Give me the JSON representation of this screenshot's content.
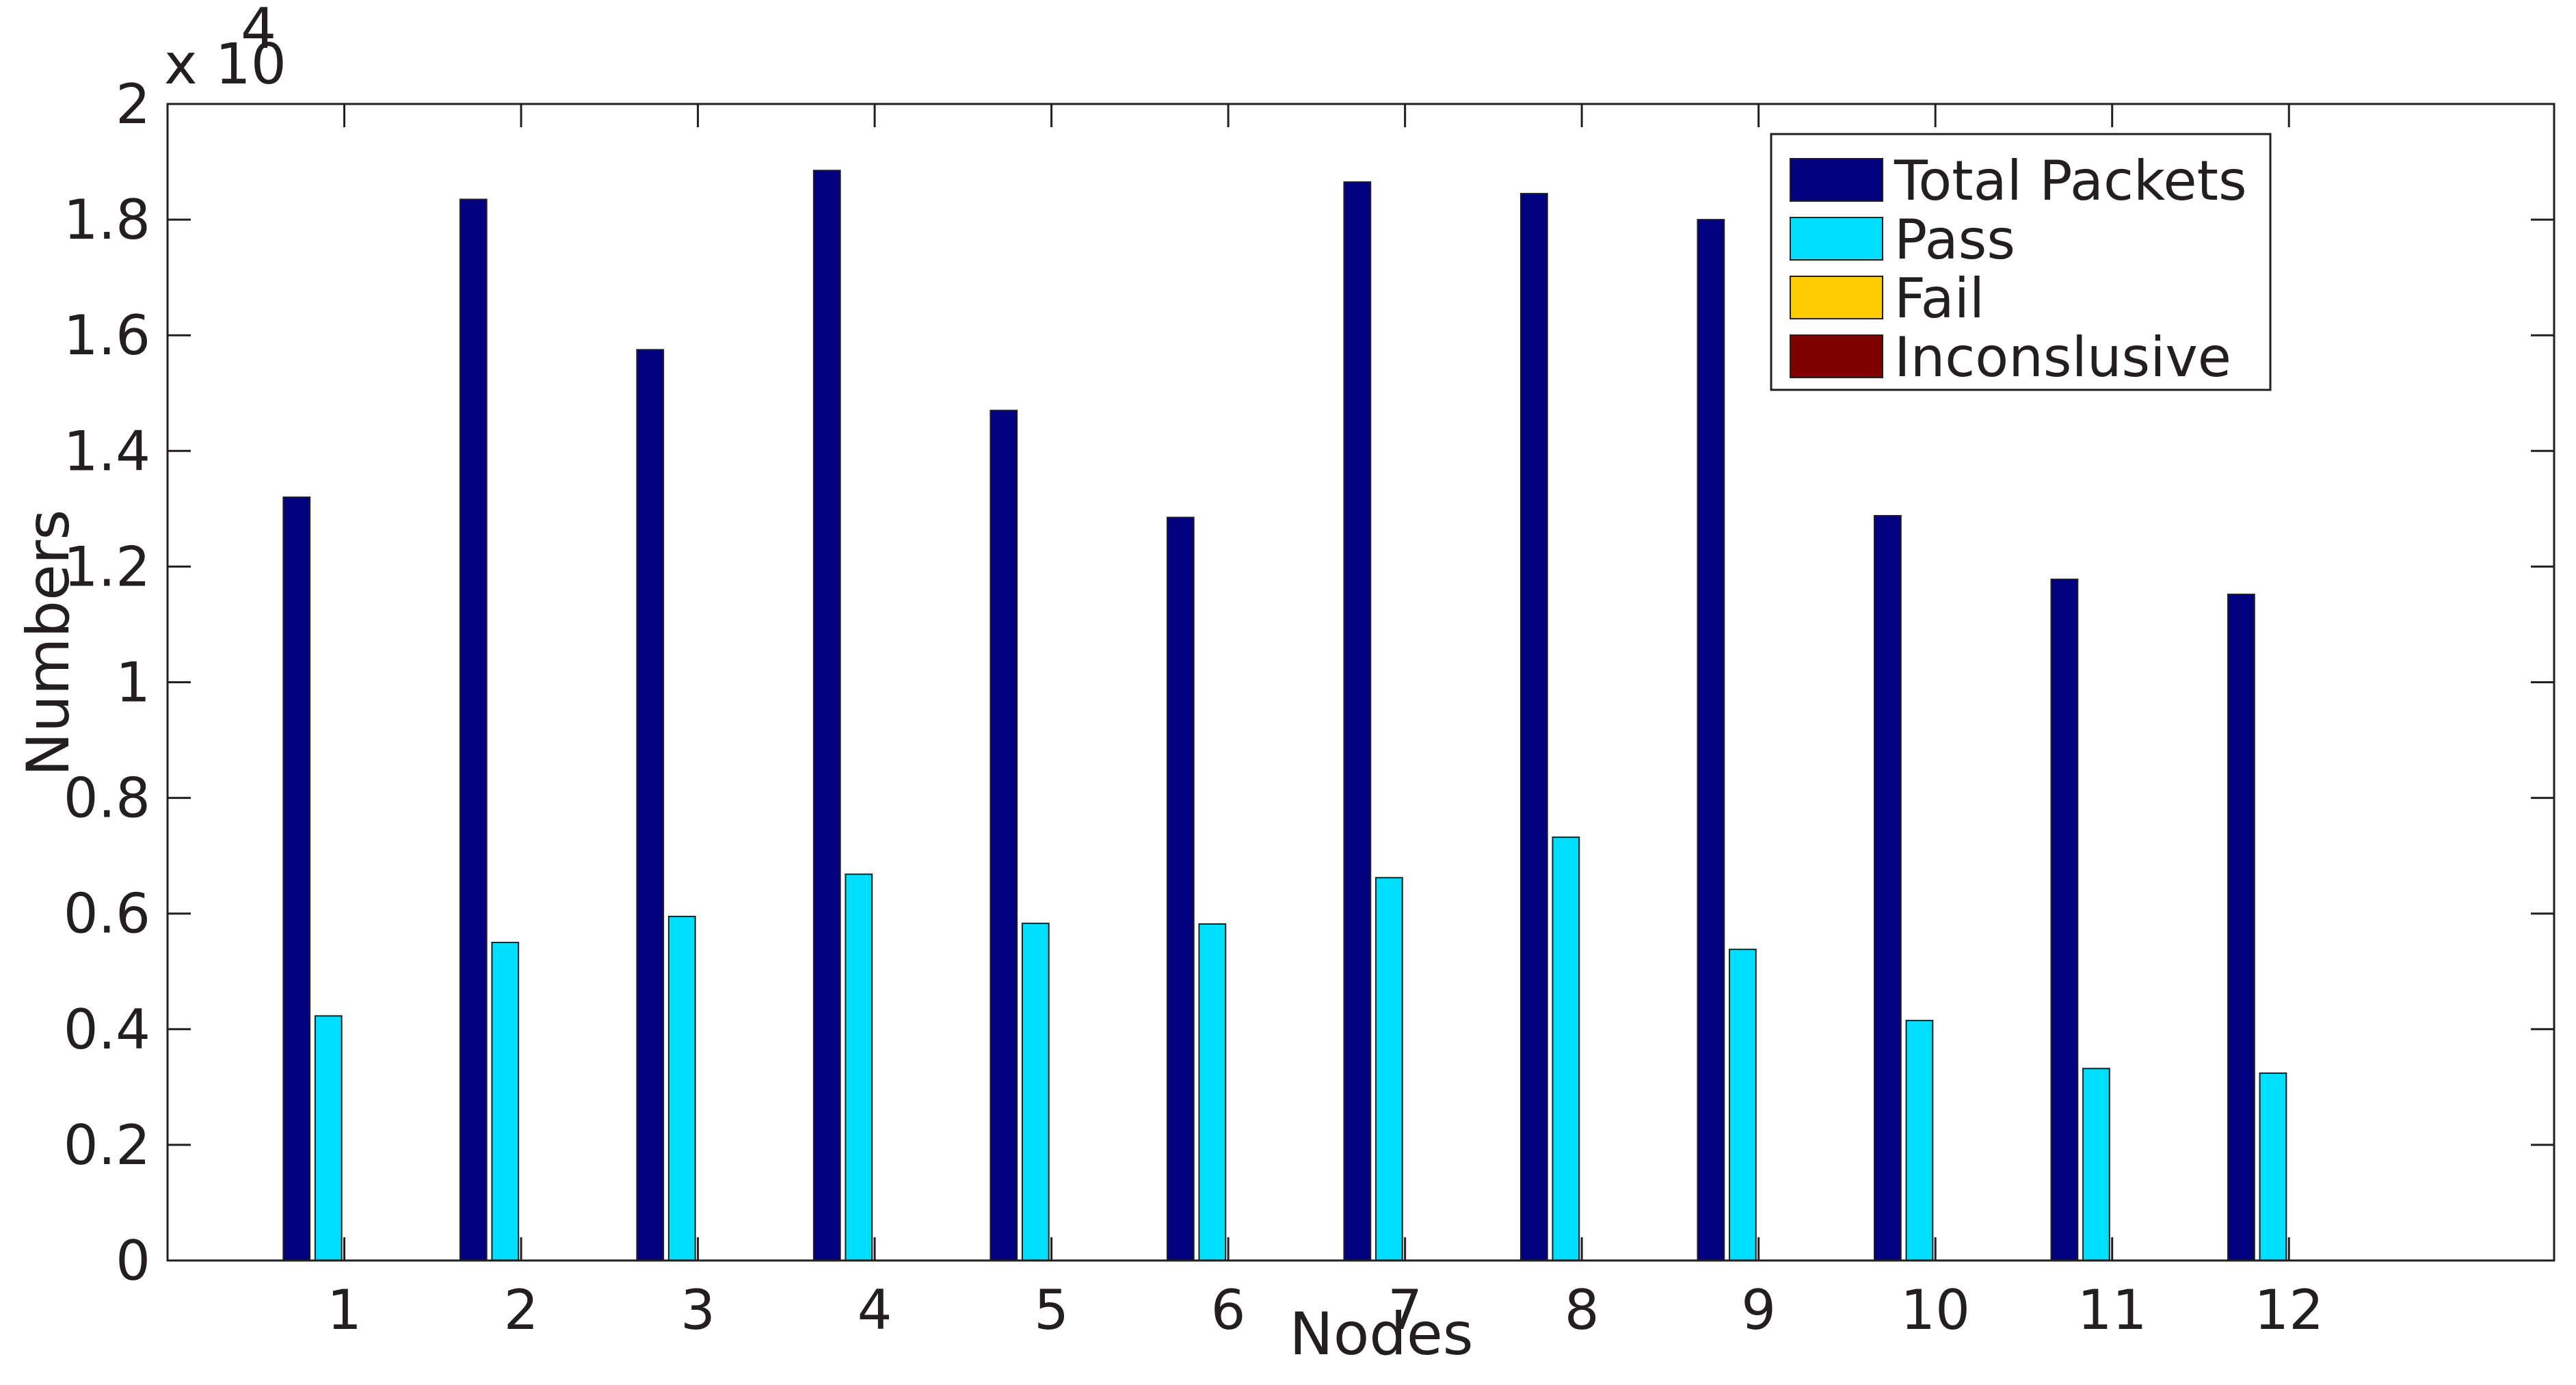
{
  "chart_data": {
    "type": "bar",
    "categories": [
      "1",
      "2",
      "3",
      "4",
      "5",
      "6",
      "7",
      "8",
      "9",
      "10",
      "11",
      "12"
    ],
    "series": [
      {
        "name": "Total Packets",
        "color": "#000080",
        "values": [
          13200,
          18350,
          15750,
          18850,
          14700,
          12850,
          18650,
          18450,
          18000,
          12880,
          11780,
          11520
        ]
      },
      {
        "name": "Pass",
        "color": "#00dfff",
        "values": [
          4230,
          5500,
          5950,
          6680,
          5830,
          5820,
          6620,
          7320,
          5380,
          4150,
          3320,
          3240
        ]
      },
      {
        "name": "Fail",
        "color": "#ffcc00",
        "values": [
          0,
          0,
          0,
          0,
          0,
          0,
          0,
          0,
          0,
          0,
          0,
          0
        ]
      },
      {
        "name": "Inconslusive",
        "color": "#800000",
        "values": [
          0,
          0,
          0,
          0,
          0,
          0,
          0,
          0,
          0,
          0,
          0,
          0
        ]
      }
    ],
    "xlabel": "Nodes",
    "ylabel": "Numbers",
    "ylim": [
      0,
      20000
    ],
    "xlim": [
      0,
      13.5
    ],
    "yticks": [
      0,
      2000,
      4000,
      6000,
      8000,
      10000,
      12000,
      14000,
      16000,
      18000,
      20000
    ],
    "ytick_labels": [
      "0",
      "0.2",
      "0.4",
      "0.6",
      "0.8",
      "1",
      "1.2",
      "1.4",
      "1.6",
      "1.8",
      "2"
    ],
    "exponent_label": {
      "base": "x 10",
      "power": "4"
    },
    "legend_position": "top-right",
    "grid": false
  }
}
